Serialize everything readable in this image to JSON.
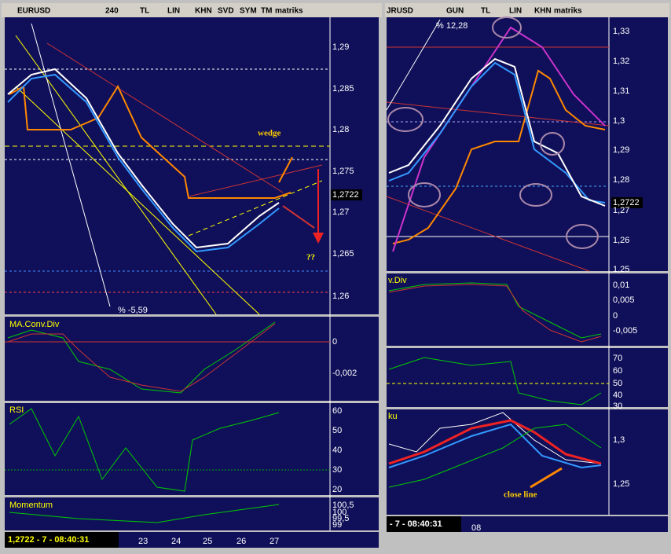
{
  "left": {
    "toolbar": [
      "EURUSD",
      "240",
      "TL",
      "LIN",
      "KHN",
      "SVD",
      "SYM",
      "TM",
      "matriks"
    ],
    "main": {
      "ticks": [
        "1,29",
        "1,285",
        "1,28",
        "1,275",
        "1,2722",
        "1,27",
        "1,265",
        "1,26"
      ],
      "change": "% -5,59",
      "wedge": "wedge",
      "question": "??"
    },
    "macd": {
      "title": "MA.Conv.Div",
      "ticks": [
        "0",
        "-0,002"
      ]
    },
    "rsi": {
      "title": "RSI",
      "ticks": [
        "60",
        "50",
        "40",
        "30",
        "20"
      ]
    },
    "momentum": {
      "title": "Momentum",
      "ticks": [
        "100,5",
        "100",
        "99,5",
        "99"
      ]
    },
    "status": "1,2722 - 7 - 08:40:31",
    "dates": [
      "23",
      "24",
      "25",
      "26",
      "27"
    ]
  },
  "right": {
    "toolbar": [
      "JRUSD",
      "GUN",
      "TL",
      "LIN",
      "KHN",
      "matriks"
    ],
    "main": {
      "ticks": [
        "1,33",
        "1,32",
        "1,31",
        "1,3",
        "1,29",
        "1,28",
        "1,2722",
        "1,27",
        "1,26",
        "1,25"
      ],
      "change": "% 12,28"
    },
    "macd": {
      "title": "v.Div",
      "ticks": [
        "0,01",
        "0,005",
        "0",
        "-0,005"
      ]
    },
    "rsi": {
      "ticks": [
        "70",
        "60",
        "50",
        "40",
        "30"
      ]
    },
    "ichimoku": {
      "title": "ku",
      "ticks": [
        "1,3",
        "1,25"
      ],
      "note": "close line"
    },
    "status": "- 7 - 08:40:31",
    "dates": [
      "08"
    ]
  }
}
